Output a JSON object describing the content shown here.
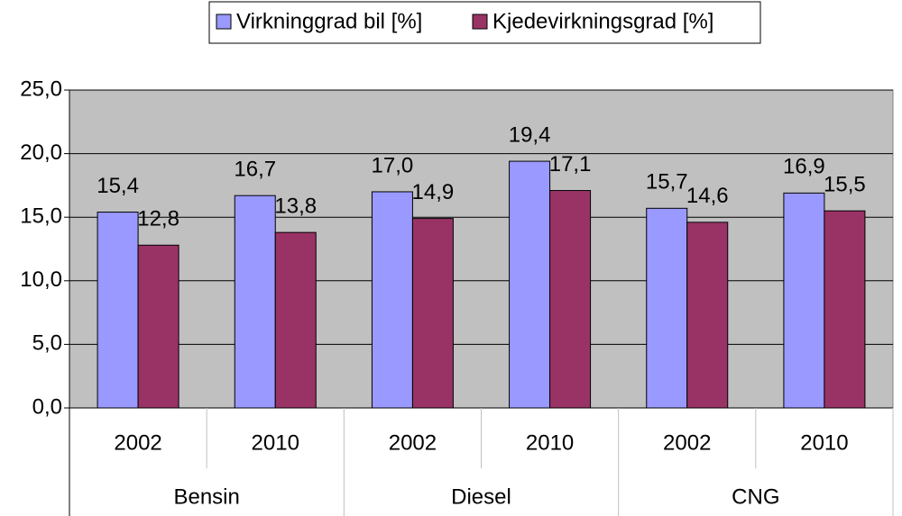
{
  "chart_data": {
    "type": "bar",
    "categories": [
      "2002",
      "2010",
      "2002",
      "2010",
      "2002",
      "2010"
    ],
    "groups": [
      "Bensin",
      "Diesel",
      "CNG"
    ],
    "series": [
      {
        "name": "Virkninggrad bil [%]",
        "color": "#9999ff",
        "values": [
          15.4,
          16.7,
          17.0,
          19.4,
          15.7,
          16.9
        ],
        "value_labels": [
          "15,4",
          "16,7",
          "17,0",
          "19,4",
          "15,7",
          "16,9"
        ]
      },
      {
        "name": "Kjedevirkningsgrad [%]",
        "color": "#993366",
        "values": [
          12.8,
          13.8,
          14.9,
          17.1,
          14.6,
          15.5
        ],
        "value_labels": [
          "12,8",
          "13,8",
          "14,9",
          "17,1",
          "14,6",
          "15,5"
        ]
      }
    ],
    "ylim": [
      0,
      25
    ],
    "yticks": [
      {
        "value": 0,
        "label": "0,0"
      },
      {
        "value": 5,
        "label": "5,0"
      },
      {
        "value": 10,
        "label": "10,0"
      },
      {
        "value": 15,
        "label": "15,0"
      },
      {
        "value": 20,
        "label": "20,0"
      },
      {
        "value": 25,
        "label": "25,0"
      }
    ],
    "grid": true,
    "legend": "top",
    "plot_background": "#c0c0c0"
  }
}
